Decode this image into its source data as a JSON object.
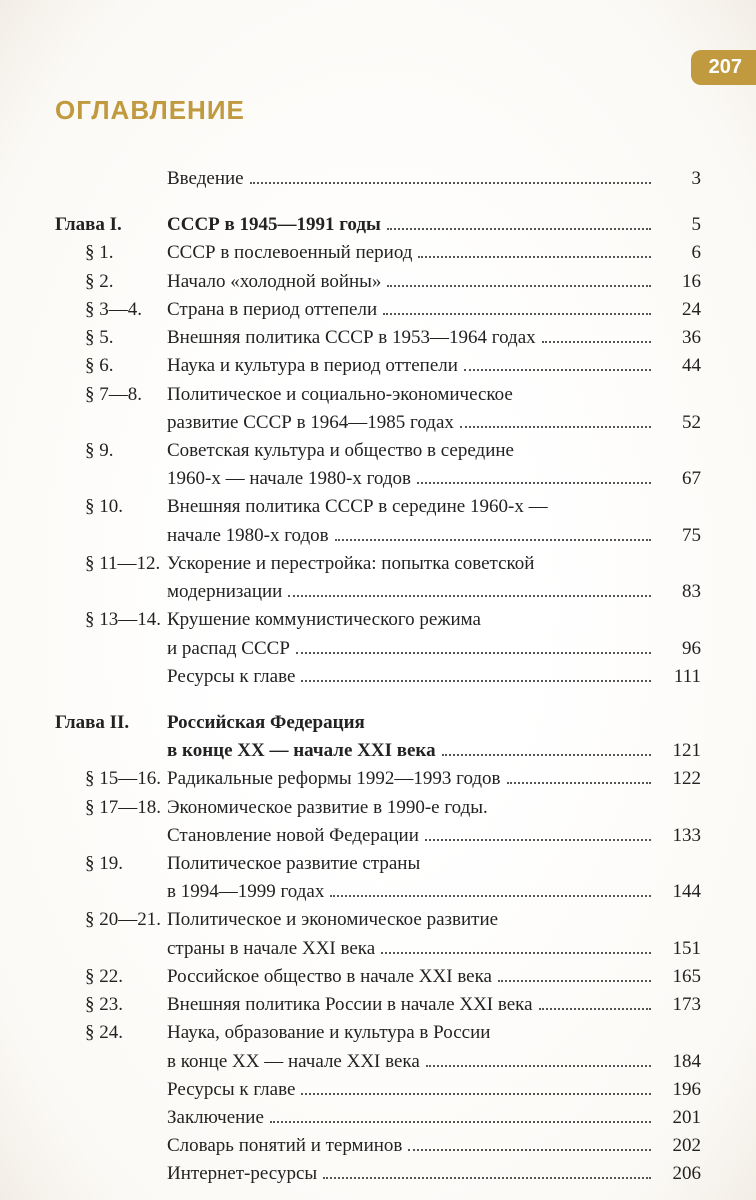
{
  "page_number": "207",
  "heading": "ОГЛАВЛЕНИЕ",
  "colors": {
    "accent": "#c19a3f",
    "text": "#222222",
    "background": "#ffffff"
  },
  "intro": {
    "label": "",
    "title": "Введение",
    "page": "3"
  },
  "chapter1": {
    "label": "Глава I.",
    "title": "СССР в 1945—1991 годы",
    "page": "5",
    "items": [
      {
        "label": "§ 1.",
        "title": "СССР в послевоенный период",
        "page": "6"
      },
      {
        "label": "§ 2.",
        "title": "Начало «холодной войны»",
        "page": "16"
      },
      {
        "label": "§ 3—4.",
        "title": "Страна в период оттепели",
        "page": "24"
      },
      {
        "label": "§ 5.",
        "title": "Внешняя политика СССР в 1953—1964 годах",
        "page": "36"
      },
      {
        "label": "§ 6.",
        "title": "Наука и культура в период оттепели",
        "page": "44"
      },
      {
        "label": "§ 7—8.",
        "title": "Политическое и социально-экономическое",
        "cont": "развитие СССР в 1964—1985 годах",
        "page": "52"
      },
      {
        "label": "§ 9.",
        "title": "Советская культура и общество в середине",
        "cont": "1960-х — начале 1980-х годов",
        "page": "67"
      },
      {
        "label": "§ 10.",
        "title": "Внешняя политика СССР в середине 1960-х —",
        "cont": "начале 1980-х годов",
        "page": "75"
      },
      {
        "label": "§ 11—12.",
        "title": "Ускорение и перестройка: попытка советской",
        "cont": "модернизации",
        "page": "83"
      },
      {
        "label": "§ 13—14.",
        "title": "Крушение коммунистического режима",
        "cont": "и распад СССР",
        "page": "96"
      }
    ],
    "resources": {
      "title": "Ресурсы к главе",
      "page": "111"
    }
  },
  "chapter2": {
    "label": "Глава II.",
    "title_l1": "Российская Федерация",
    "title_l2": "в конце XX — начале XXI века",
    "page": "121",
    "items": [
      {
        "label": "§ 15—16.",
        "title": "Радикальные реформы 1992—1993 годов",
        "page": "122"
      },
      {
        "label": "§ 17—18.",
        "title": "Экономическое развитие в 1990-е годы.",
        "cont": "Становление новой Федерации",
        "page": "133"
      },
      {
        "label": "§ 19.",
        "title": "Политическое развитие страны",
        "cont": "в 1994—1999 годах",
        "page": "144"
      },
      {
        "label": "§ 20—21.",
        "title": "Политическое и экономическое развитие",
        "cont": "страны в начале XXI века",
        "page": "151"
      },
      {
        "label": "§ 22.",
        "title": "Российское общество в начале XXI века",
        "page": "165"
      },
      {
        "label": "§ 23.",
        "title": "Внешняя политика России в начале XXI века",
        "page": "173"
      },
      {
        "label": "§ 24.",
        "title": "Наука, образование и культура в России",
        "cont": "в конце XX — начале XXI века",
        "page": "184"
      }
    ]
  },
  "tail": [
    {
      "title": "Ресурсы к главе",
      "page": "196"
    },
    {
      "title": "Заключение",
      "page": "201"
    },
    {
      "title": "Словарь понятий и терминов",
      "page": "202"
    },
    {
      "title": "Интернет-ресурсы",
      "page": "206"
    }
  ]
}
